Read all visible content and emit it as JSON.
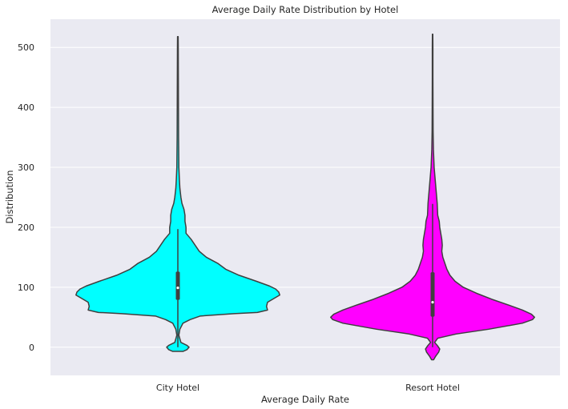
{
  "chart_data": {
    "type": "violin",
    "title": "Average Daily Rate Distribution by Hotel",
    "xlabel": "Average Daily Rate",
    "ylabel": "Distribution",
    "categories": [
      "City Hotel",
      "Resort Hotel"
    ],
    "ylim": [
      -47,
      547
    ],
    "yticks": [
      0,
      100,
      200,
      300,
      400,
      500
    ],
    "grid": true,
    "background": "#eaeaf2",
    "series": [
      {
        "category": "City Hotel",
        "color": "#00ffff",
        "whisker": [
          0,
          197
        ],
        "quartiles": [
          79,
          126
        ],
        "median": 99,
        "profile": [
          [
            -7,
            0.05
          ],
          [
            -4,
            0.09
          ],
          [
            0,
            0.11
          ],
          [
            3,
            0.09
          ],
          [
            8,
            0.03
          ],
          [
            20,
            0.01
          ],
          [
            30,
            0.02
          ],
          [
            40,
            0.05
          ],
          [
            46,
            0.12
          ],
          [
            52,
            0.22
          ],
          [
            56,
            0.55
          ],
          [
            58,
            0.78
          ],
          [
            62,
            0.88
          ],
          [
            68,
            0.87
          ],
          [
            75,
            0.88
          ],
          [
            82,
            0.95
          ],
          [
            87,
            1.0
          ],
          [
            92,
            0.99
          ],
          [
            97,
            0.96
          ],
          [
            102,
            0.9
          ],
          [
            110,
            0.77
          ],
          [
            120,
            0.6
          ],
          [
            130,
            0.47
          ],
          [
            140,
            0.39
          ],
          [
            150,
            0.28
          ],
          [
            160,
            0.21
          ],
          [
            170,
            0.17
          ],
          [
            180,
            0.13
          ],
          [
            190,
            0.08
          ],
          [
            200,
            0.08
          ],
          [
            210,
            0.07
          ],
          [
            220,
            0.07
          ],
          [
            230,
            0.06
          ],
          [
            240,
            0.04
          ],
          [
            250,
            0.03
          ],
          [
            265,
            0.02
          ],
          [
            280,
            0.015
          ],
          [
            300,
            0.01
          ],
          [
            350,
            0.007
          ],
          [
            400,
            0.006
          ],
          [
            450,
            0.005
          ],
          [
            500,
            0.004
          ],
          [
            518,
            0.003
          ]
        ]
      },
      {
        "category": "Resort Hotel",
        "color": "#ff00ff",
        "whisker": [
          0,
          239
        ],
        "quartiles": [
          51,
          125
        ],
        "median": 75,
        "profile": [
          [
            -21,
            0.01
          ],
          [
            -15,
            0.03
          ],
          [
            -8,
            0.06
          ],
          [
            -3,
            0.07
          ],
          [
            2,
            0.05
          ],
          [
            8,
            0.02
          ],
          [
            15,
            0.05
          ],
          [
            22,
            0.23
          ],
          [
            30,
            0.55
          ],
          [
            40,
            0.88
          ],
          [
            46,
            0.98
          ],
          [
            50,
            1.0
          ],
          [
            55,
            0.97
          ],
          [
            62,
            0.88
          ],
          [
            70,
            0.75
          ],
          [
            80,
            0.58
          ],
          [
            90,
            0.43
          ],
          [
            100,
            0.3
          ],
          [
            110,
            0.22
          ],
          [
            120,
            0.17
          ],
          [
            130,
            0.14
          ],
          [
            140,
            0.12
          ],
          [
            150,
            0.1
          ],
          [
            160,
            0.09
          ],
          [
            170,
            0.095
          ],
          [
            180,
            0.09
          ],
          [
            190,
            0.08
          ],
          [
            200,
            0.07
          ],
          [
            210,
            0.065
          ],
          [
            220,
            0.05
          ],
          [
            240,
            0.045
          ],
          [
            260,
            0.035
          ],
          [
            280,
            0.025
          ],
          [
            300,
            0.015
          ],
          [
            330,
            0.008
          ],
          [
            360,
            0.005
          ],
          [
            400,
            0.004
          ],
          [
            450,
            0.003
          ],
          [
            500,
            0.003
          ],
          [
            522,
            0.002
          ]
        ]
      }
    ]
  }
}
